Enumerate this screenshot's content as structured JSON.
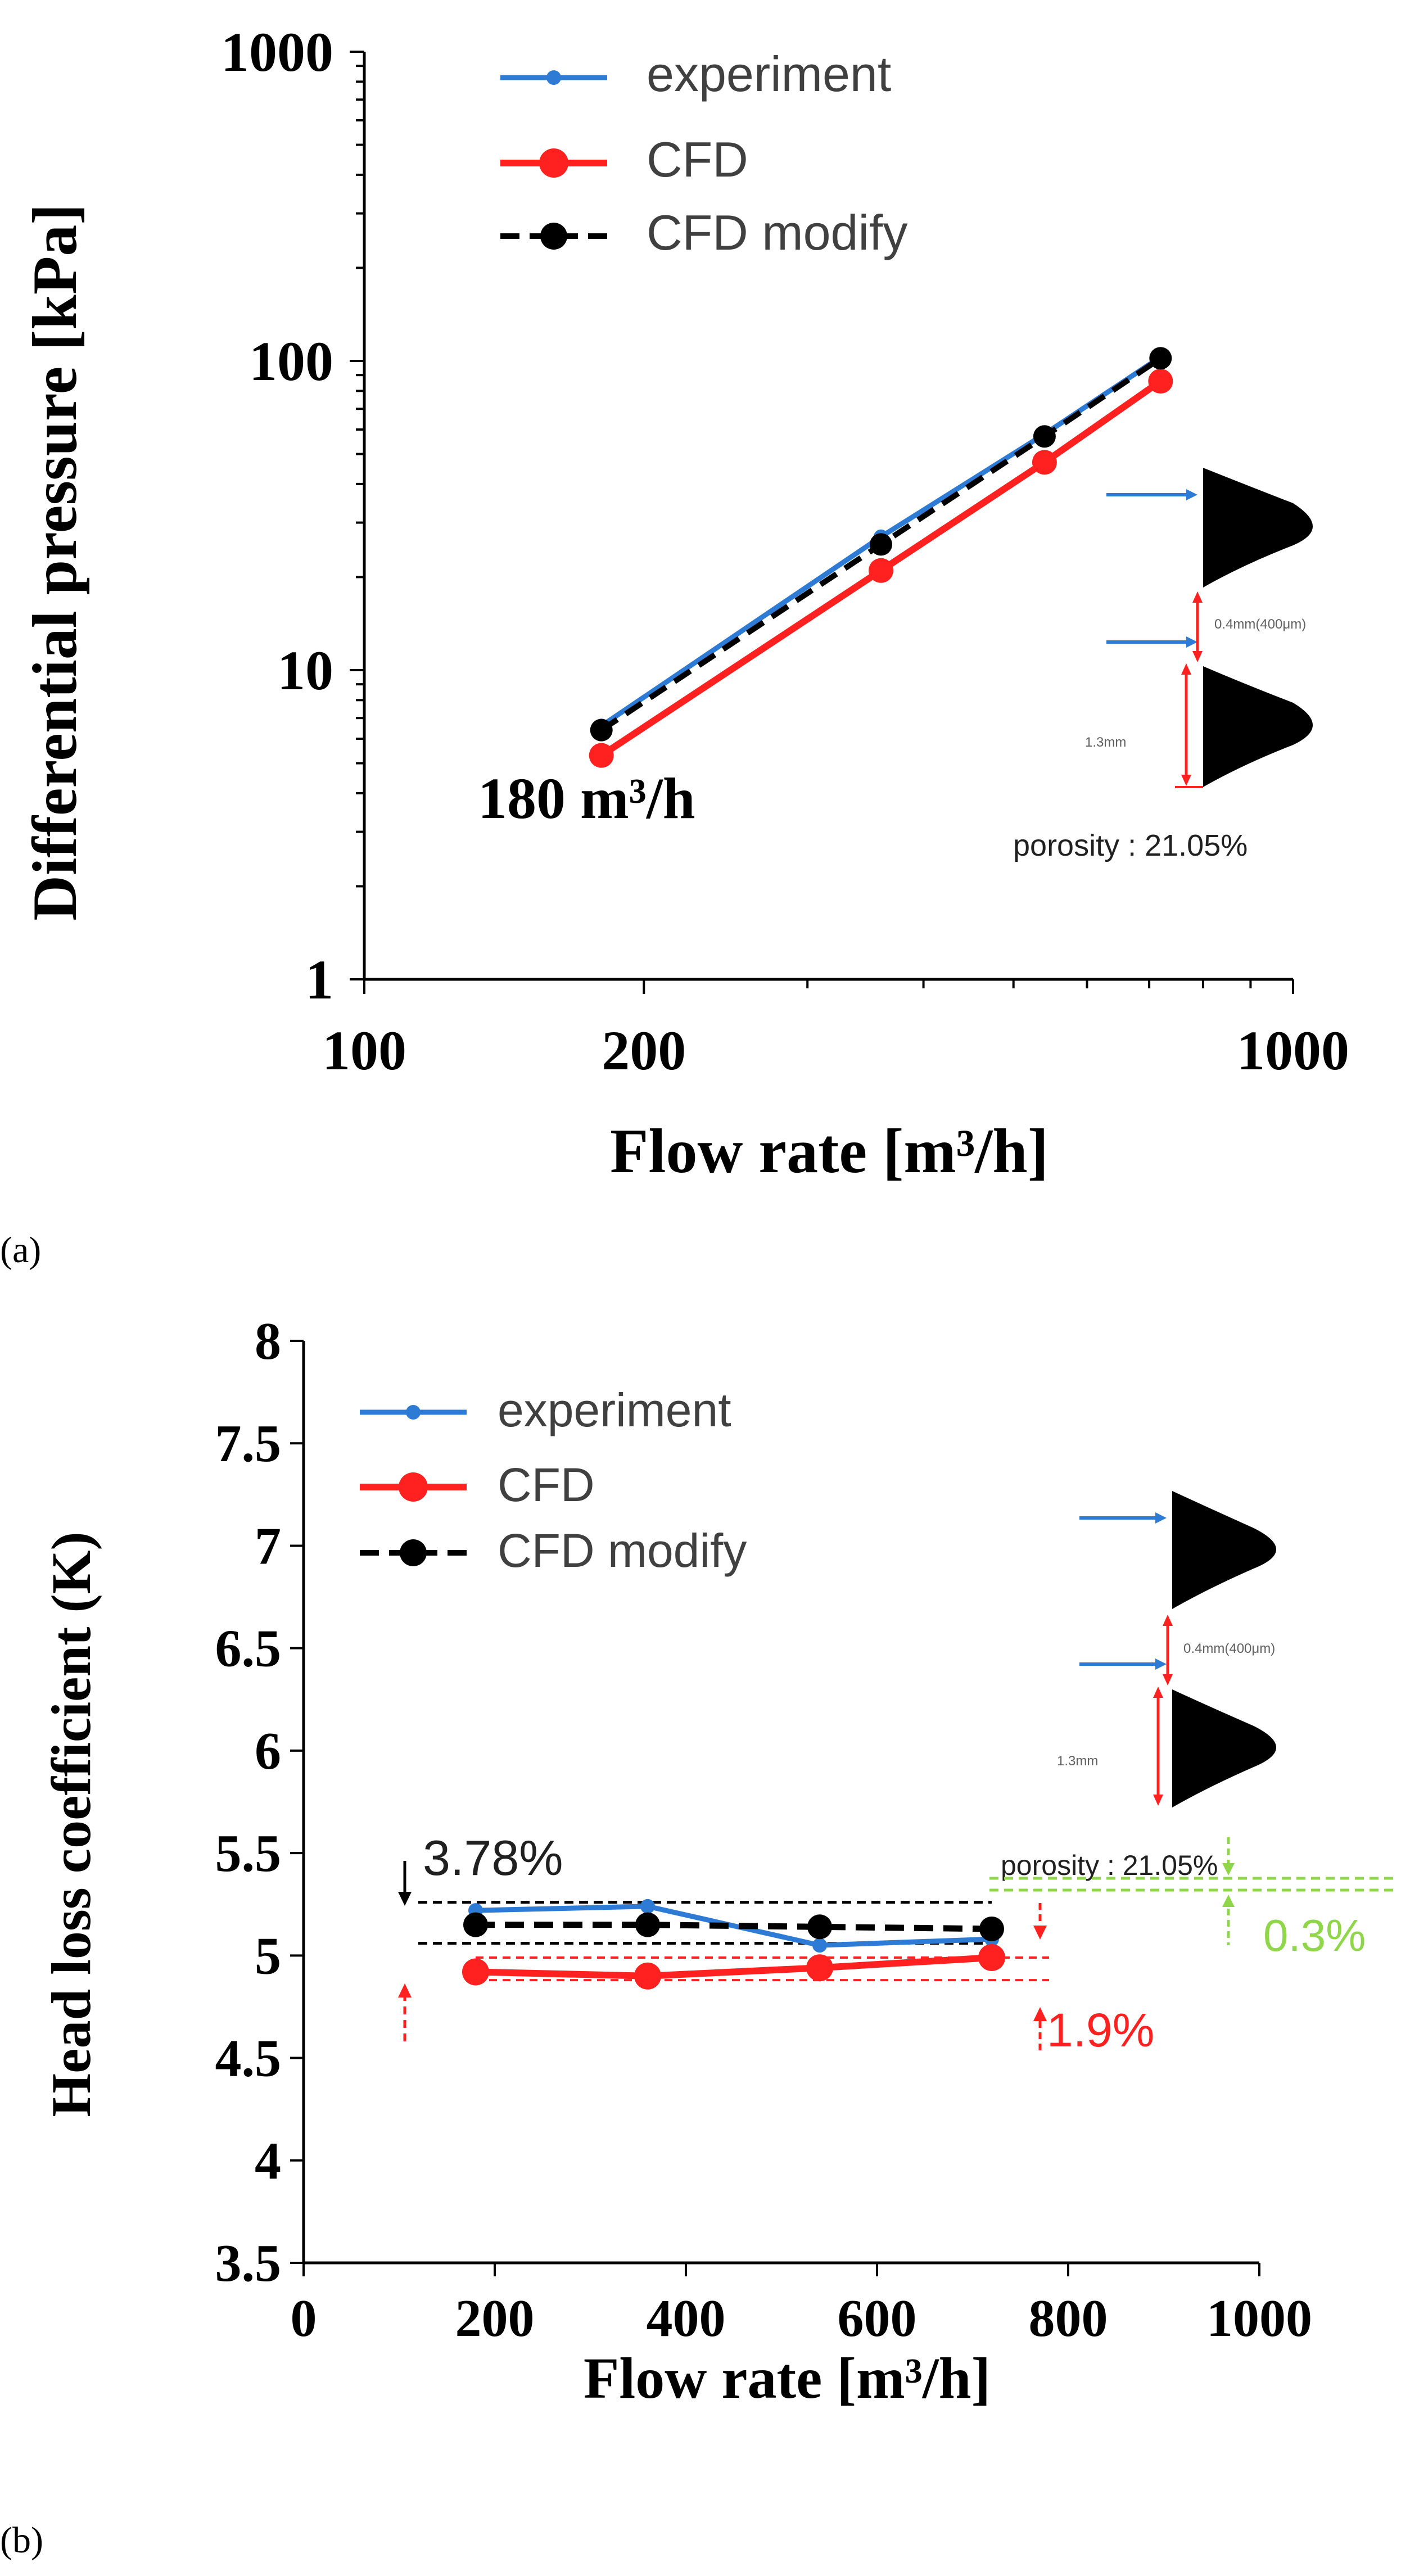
{
  "chart_data": [
    {
      "type": "line",
      "panel_label": "(a)",
      "xscale": "log",
      "yscale": "log",
      "xlabel": "Flow rate [m³/h]",
      "ylabel": "Differential pressure [kPa]",
      "xlim": [
        100,
        1000
      ],
      "ylim": [
        1,
        1000
      ],
      "xticks": [
        "100",
        "200",
        "1000"
      ],
      "yticks": [
        "1",
        "10",
        "100",
        "1000"
      ],
      "legend": [
        "experiment",
        "CFD",
        "CFD modify"
      ],
      "x": [
        180,
        360,
        540,
        720
      ],
      "series": [
        {
          "name": "experiment",
          "color": "#2e7bd6",
          "style": "solid",
          "values": [
            6.6,
            27.0,
            58.0,
            103.0
          ]
        },
        {
          "name": "CFD",
          "color": "#ff2020",
          "style": "solid",
          "values": [
            5.3,
            21.0,
            47.0,
            86.0
          ]
        },
        {
          "name": "CFD modify",
          "color": "#000000",
          "style": "dashed",
          "values": [
            6.4,
            25.5,
            57.0,
            102.0
          ]
        }
      ],
      "annotations": {
        "flow_label": "180 m³/h",
        "porosity": "porosity : 21.05%",
        "inset_gap": "0.4mm(400μm)",
        "inset_height": "1.3mm"
      }
    },
    {
      "type": "line",
      "panel_label": "(b)",
      "xlabel": "Flow rate [m³/h]",
      "ylabel": "Head loss coefficient (K)",
      "xlim": [
        0,
        1000
      ],
      "ylim": [
        3.5,
        8
      ],
      "xticks": [
        "0",
        "200",
        "400",
        "600",
        "800",
        "1000"
      ],
      "yticks": [
        "3.5",
        "4",
        "4.5",
        "5",
        "5.5",
        "6",
        "6.5",
        "7",
        "7.5",
        "8"
      ],
      "legend": [
        "experiment",
        "CFD",
        "CFD modify"
      ],
      "x": [
        180,
        360,
        540,
        720
      ],
      "series": [
        {
          "name": "experiment",
          "color": "#2e7bd6",
          "style": "solid",
          "values": [
            5.22,
            5.24,
            5.05,
            5.08
          ]
        },
        {
          "name": "CFD",
          "color": "#ff2020",
          "style": "solid",
          "values": [
            4.92,
            4.9,
            4.94,
            4.99
          ]
        },
        {
          "name": "CFD modify",
          "color": "#000000",
          "style": "dashed",
          "values": [
            5.15,
            5.15,
            5.14,
            5.13
          ]
        }
      ],
      "annotations": {
        "black_pct": "3.78%",
        "red_pct": "1.9%",
        "green_pct": "0.3%",
        "porosity": "porosity : 21.05%",
        "inset_gap": "0.4mm(400μm)",
        "inset_height": "1.3mm"
      }
    }
  ]
}
